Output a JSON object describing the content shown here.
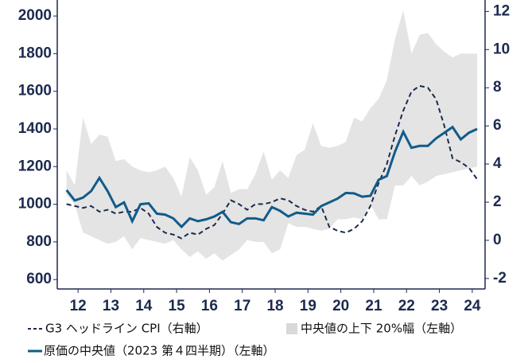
{
  "chart_data": {
    "type": "line",
    "x": [
      11.65,
      11.9,
      12.15,
      12.4,
      12.65,
      12.9,
      13.15,
      13.4,
      13.65,
      13.9,
      14.15,
      14.4,
      14.65,
      14.9,
      15.15,
      15.4,
      15.65,
      15.9,
      16.15,
      16.4,
      16.65,
      16.9,
      17.15,
      17.4,
      17.65,
      17.9,
      18.15,
      18.4,
      18.65,
      18.9,
      19.15,
      19.4,
      19.65,
      19.9,
      20.15,
      20.4,
      20.65,
      20.9,
      21.15,
      21.4,
      21.65,
      21.9,
      22.15,
      22.4,
      22.65,
      22.9,
      23.15,
      23.4,
      23.65,
      23.9,
      24.15
    ],
    "xlim": [
      11.44,
      24.39
    ],
    "xticks": [
      12,
      13,
      14,
      15,
      16,
      17,
      18,
      19,
      20,
      21,
      22,
      23,
      24
    ],
    "ylim": [
      550,
      2085
    ],
    "yticks": [
      600,
      800,
      1000,
      1200,
      1400,
      1600,
      1800,
      2000
    ],
    "y2lim": [
      -2.55,
      12.6
    ],
    "y2ticks": [
      -2,
      0,
      2,
      4,
      6,
      8,
      10,
      12
    ],
    "series": [
      {
        "name": "G3 ヘッドライン CPI（右軸）",
        "color": "#1c2a4f",
        "axis": "y2",
        "dashed": true,
        "values": [
          1.9,
          1.8,
          1.7,
          1.8,
          1.5,
          1.6,
          1.4,
          1.5,
          1.5,
          1.7,
          1.4,
          0.7,
          0.4,
          0.3,
          0.1,
          0.4,
          0.3,
          0.6,
          0.8,
          1.4,
          2.1,
          1.9,
          1.6,
          1.9,
          1.9,
          2.0,
          2.2,
          2.1,
          1.8,
          1.6,
          1.5,
          1.8,
          0.7,
          0.5,
          0.4,
          0.6,
          1.0,
          1.8,
          3.0,
          4.0,
          5.5,
          6.8,
          7.8,
          8.1,
          8.0,
          7.4,
          6.0,
          4.3,
          4.1,
          3.8,
          3.2
        ]
      },
      {
        "name": "中央値の上下 20%幅（左軸）",
        "color": "#e4e4e4",
        "upper": [
          1180,
          1100,
          1460,
          1320,
          1370,
          1360,
          1230,
          1240,
          1200,
          1180,
          1170,
          1180,
          1200,
          1140,
          1040,
          1250,
          1180,
          1050,
          1090,
          1230,
          1060,
          1080,
          1080,
          1160,
          1280,
          1130,
          1180,
          1140,
          1260,
          1290,
          1430,
          1310,
          1300,
          1310,
          1330,
          1460,
          1440,
          1510,
          1560,
          1660,
          1880,
          2030,
          1800,
          1900,
          1910,
          1850,
          1810,
          1780,
          1800,
          1800,
          1800
        ],
        "lower": [
          1050,
          1000,
          850,
          830,
          810,
          790,
          800,
          830,
          760,
          820,
          810,
          800,
          790,
          810,
          760,
          720,
          750,
          710,
          740,
          700,
          730,
          760,
          810,
          800,
          800,
          740,
          760,
          900,
          880,
          880,
          870,
          860,
          870,
          920,
          920,
          930,
          920,
          1000,
          920,
          920,
          1100,
          1100,
          1150,
          1100,
          1120,
          1150,
          1160,
          1170,
          1180,
          1190,
          1200
        ]
      },
      {
        "name": "原価の中央値（2023 第４四半期）（左軸）",
        "color": "#125b8a",
        "values": [
          1075,
          1020,
          1035,
          1070,
          1140,
          1070,
          985,
          1010,
          910,
          1000,
          1005,
          950,
          945,
          925,
          880,
          925,
          910,
          920,
          935,
          960,
          905,
          895,
          925,
          925,
          915,
          985,
          965,
          935,
          955,
          950,
          945,
          990,
          1010,
          1030,
          1060,
          1058,
          1040,
          1045,
          1130,
          1150,
          1280,
          1385,
          1300,
          1310,
          1310,
          1350,
          1380,
          1410,
          1345,
          1380,
          1400
        ]
      }
    ]
  }
}
